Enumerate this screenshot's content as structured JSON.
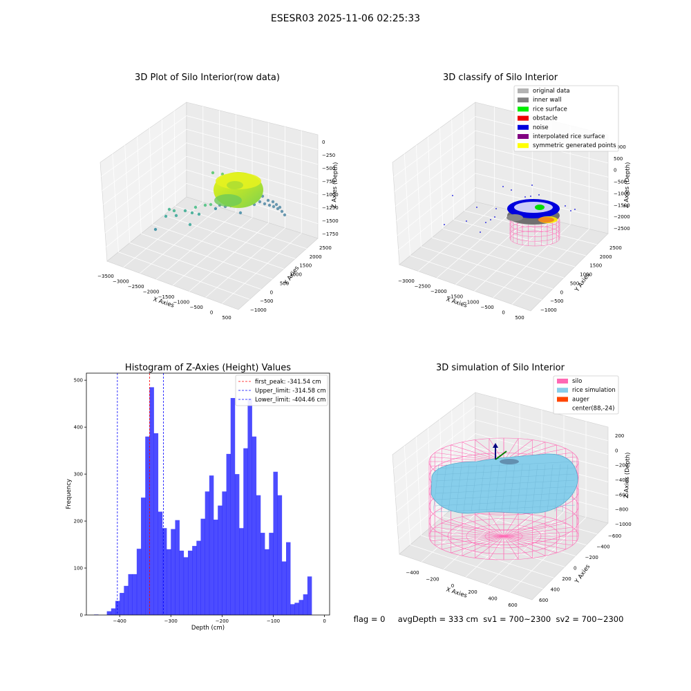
{
  "suptitle": "ESESR03 2025-11-06 02:25:33",
  "footer": "flag = 0     avgDepth = 333 cm  sv1 = 700~2300  sv2 = 700~2300",
  "panel1": {
    "title": "3D Plot of Silo Interior(row data)",
    "xlabel": "X Axies",
    "ylabel": "Y Axies",
    "zlabel": "Z Axies (Depth)",
    "xticks": [
      "−3500",
      "−3000",
      "−2500",
      "−2000",
      "−1500",
      "−1000",
      "−500",
      "0",
      "500"
    ],
    "yticks": [
      "−1000",
      "−500",
      "0",
      "500",
      "1000",
      "1500",
      "2000",
      "2500"
    ],
    "zticks": [
      "0",
      "−250",
      "−500",
      "−750",
      "−1000",
      "−1250",
      "−1500",
      "−1750"
    ]
  },
  "panel2": {
    "title": "3D classify of Silo Interior",
    "xlabel": "X Axies",
    "ylabel": "Y Axies",
    "zlabel": "Z Axies (Depth)",
    "xticks": [
      "−3000",
      "−2500",
      "−2000",
      "−1500",
      "−1000",
      "−500",
      "0",
      "500"
    ],
    "yticks": [
      "−1000",
      "−500",
      "0",
      "500",
      "1000",
      "1500",
      "2000",
      "2500"
    ],
    "zticks": [
      "1000",
      "500",
      "0",
      "−500",
      "−1000",
      "−1500",
      "−2000",
      "−2500"
    ],
    "legend": [
      {
        "label": "original data",
        "color": "#b3b3b3"
      },
      {
        "label": "inner wall",
        "color": "#808080"
      },
      {
        "label": "rice surface",
        "color": "#00ee00"
      },
      {
        "label": "obstacle",
        "color": "#ee0000"
      },
      {
        "label": "noise",
        "color": "#0000dd"
      },
      {
        "label": "interpolated rice surface",
        "color": "#800080"
      },
      {
        "label": "symmetric generated points",
        "color": "#ffff00"
      }
    ]
  },
  "panel4": {
    "title": "3D simulation of Silo Interior",
    "xlabel": "X Axies",
    "ylabel": "Y Axies",
    "zlabel": "Z Axies (Depth)",
    "xticks": [
      "−400",
      "−200",
      "0",
      "200",
      "400",
      "600"
    ],
    "yticks": [
      "−600",
      "−400",
      "−200",
      "0",
      "200",
      "400",
      "600"
    ],
    "zticks": [
      "200",
      "0",
      "−200",
      "−400",
      "−600",
      "−800",
      "−1000"
    ],
    "legend": [
      {
        "label": "silo",
        "color": "#ff69b4"
      },
      {
        "label": "rice simulation",
        "color": "#87ceeb"
      },
      {
        "label": "auger",
        "color": "#ff4500"
      },
      {
        "label": "center(88,-24)",
        "color": "#ffffff"
      }
    ]
  },
  "chart_data": {
    "type": "bar",
    "title": "Histogram of Z-Axies (Height) Values",
    "xlabel": "Depth (cm)",
    "ylabel": "Frequency",
    "xlim": [
      -465,
      10
    ],
    "ylim": [
      0,
      515
    ],
    "xticks": [
      -400,
      -300,
      -200,
      -100,
      0
    ],
    "xtick_labels": [
      "−400",
      "−300",
      "−200",
      "−100",
      "0"
    ],
    "yticks": [
      0,
      100,
      200,
      300,
      400,
      500
    ],
    "bin_start": -450,
    "bin_width": 8.333,
    "bar_color": "#0000ff",
    "values": [
      1,
      0,
      0,
      8,
      14,
      30,
      47,
      62,
      87,
      87,
      141,
      250,
      380,
      485,
      387,
      220,
      185,
      140,
      183,
      202,
      137,
      123,
      137,
      147,
      158,
      205,
      263,
      297,
      203,
      233,
      263,
      343,
      462,
      300,
      185,
      355,
      461,
      380,
      255,
      175,
      140,
      175,
      305,
      255,
      114,
      155,
      23,
      26,
      32,
      44,
      82
    ],
    "vlines": [
      {
        "label": "first_peak: -341.54 cm",
        "x": -341.54,
        "color": "#ff0000"
      },
      {
        "label": "Upper_limit: -314.58 cm",
        "x": -314.58,
        "color": "#0000ff"
      },
      {
        "label": "Lower_limit: -404.46 cm",
        "x": -404.46,
        "color": "#0000ff"
      }
    ],
    "legend_loc": "upper right"
  }
}
